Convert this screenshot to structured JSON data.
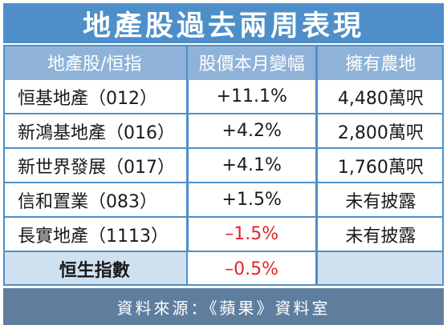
{
  "title": "地產股過去兩周表現",
  "headers": {
    "stock": "地產股/恒指",
    "change": "股價本月變幅",
    "land": "擁有農地"
  },
  "rows": [
    {
      "name": "恒基地產（012）",
      "change": "+11.1%",
      "land": "4,480萬呎",
      "negative": false
    },
    {
      "name": "新鴻基地產（016）",
      "change": "+4.2%",
      "land": "2,800萬呎",
      "negative": false
    },
    {
      "name": "新世界發展（017）",
      "change": "+4.1%",
      "land": "1,760萬呎",
      "negative": false
    },
    {
      "name": "信和置業（083）",
      "change": "+1.5%",
      "land": "未有披露",
      "negative": false
    },
    {
      "name": "長實地產（1113）",
      "change": "–1.5%",
      "land": "未有披露",
      "negative": true
    }
  ],
  "index": {
    "name": "恒生指數",
    "change": "–0.5%",
    "land": ""
  },
  "footer": "資料來源：《蘋果》資料室",
  "colors": {
    "title_bg": "#4e8fc9",
    "header_bg": "#8fb3d8",
    "index_bg": "#cfe0f1",
    "footer_bg": "#5f7e9e",
    "negative": "#e0262c"
  }
}
